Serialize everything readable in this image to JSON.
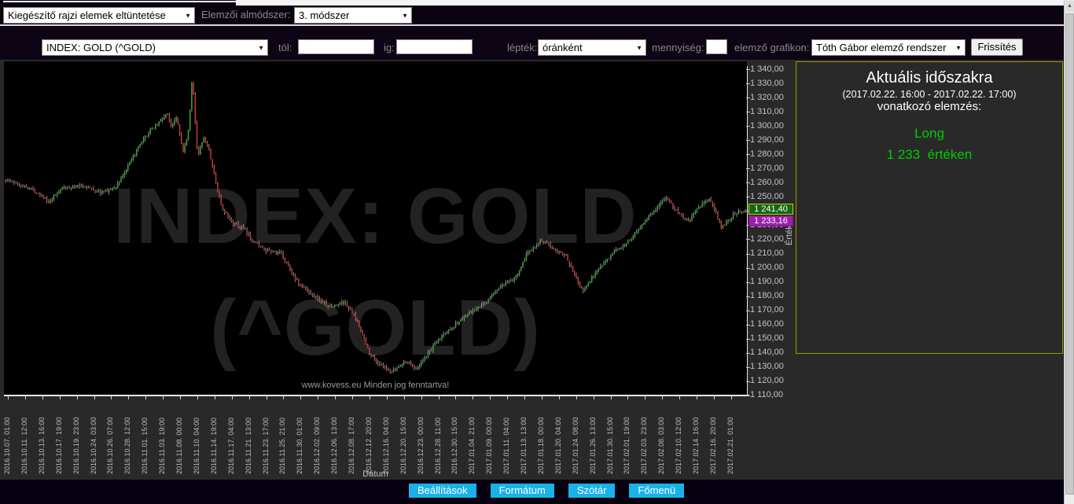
{
  "colors": {
    "page_bg": "#292929",
    "toolbar_bg": "#0b0410",
    "footer_bg": "#070010",
    "plot_bg": "#000000",
    "accent_button": "#18b2e9",
    "panel_border": "#9a9a00",
    "signal_green": "#00cc00",
    "tag_green_bg": "#156615",
    "tag_green_border": "#cccc00",
    "tag_purple_bg": "#9b1fb0",
    "candle_up": "#3aa23a",
    "candle_down": "#c13535",
    "wick": "#c0c0c0",
    "axis": "#e8e8e8",
    "tick_text": "#c4c4c4",
    "label_gray": "#8a8a8a",
    "watermark": "#222222"
  },
  "toolbar1": {
    "draw_elements_select": "Kiegészítő rajzi elemek eltüntetése",
    "submethod_label": "Elemzői almódszer:",
    "submethod_select": "3. módszer"
  },
  "toolbar2": {
    "instrument_select": "INDEX: GOLD (^GOLD)",
    "from_label": "tól:",
    "from_value": "",
    "to_label": "ig:",
    "to_value": "",
    "scale_label": "lépték:",
    "scale_select": "óránként",
    "quantity_label": "mennyiség:",
    "quantity_value": "",
    "analyzer_label": "elemző grafikon:",
    "analyzer_select": "Tóth Gábor elemző rendszer",
    "refresh_button": "Frissítés"
  },
  "chart": {
    "watermark_line1": "INDEX: GOLD",
    "watermark_line2": "(^GOLD)",
    "copyright": "www.kovess.eu Minden jog fenntartva!",
    "x_axis_title": "Dátum",
    "y_axis_title": "Érték",
    "price_tag_top": "1 241,40",
    "price_tag_bottom": "1 233,16"
  },
  "panel": {
    "title": "Aktuális időszakra",
    "period": "(2017.02.22. 16:00 - 2017.02.22. 17:00)",
    "subtitle": "vonatkozó elemzés:",
    "signal": "Long",
    "value_line": "1 233  értéken"
  },
  "footer": {
    "buttons": [
      {
        "label": "Beállítások"
      },
      {
        "label": "Formátum"
      },
      {
        "label": "Szótár"
      },
      {
        "label": "Főmenü"
      }
    ]
  },
  "scrollbar": {
    "up_arrow": "▲"
  },
  "chart_data": {
    "type": "candlestick",
    "instrument": "INDEX: GOLD (^GOLD)",
    "interval": "óránként",
    "x_axis_title": "Dátum",
    "y_axis_title": "Érték",
    "y_min": 1110,
    "y_max": 1340,
    "y_step": 10,
    "last_price": 1241.4,
    "analysis_price": 1233.16,
    "candle_count": 430,
    "y_ticks": [
      "1 340,00",
      "1 330,00",
      "1 320,00",
      "1 310,00",
      "1 300,00",
      "1 290,00",
      "1 280,00",
      "1 270,00",
      "1 260,00",
      "1 250,00",
      "1 240,00",
      "1 230,00",
      "1 220,00",
      "1 210,00",
      "1 200,00",
      "1 190,00",
      "1 180,00",
      "1 170,00",
      "1 160,00",
      "1 150,00",
      "1 140,00",
      "1 130,00",
      "1 120,00",
      "1 110,00"
    ],
    "x_ticks": [
      "2016.10.07. 01:00",
      "2016.10.11. 12:00",
      "2016.10.13. 16:00",
      "2016.10.17. 19:00",
      "2016.10.19. 23:00",
      "2016.10.24. 03:00",
      "2016.10.26. 07:00",
      "2016.10.28. 12:00",
      "2016.11.01. 15:00",
      "2016.11.03. 19:00",
      "2016.11.08. 00:00",
      "2016.11.10. 04:00",
      "2016.11.14. 19:00",
      "2016.11.17. 04:00",
      "2016.11.21. 13:00",
      "2016.11.23. 17:00",
      "2016.11.25. 21:00",
      "2016.11.30. 01:00",
      "2016.12.02. 09:00",
      "2016.12.06. 13:00",
      "2016.12.08. 17:00",
      "2016.12.12. 20:00",
      "2016.12.16. 04:00",
      "2016.12.20. 15:00",
      "2016.12.23. 00:00",
      "2016.12.28. 11:00",
      "2016.12.30. 15:00",
      "2017.01.04. 21:00",
      "2017.01.09. 00:00",
      "2017.01.11. 04:00",
      "2017.01.13. 13:00",
      "2017.01.18. 00:00",
      "2017.01.20. 04:00",
      "2017.01.24. 08:00",
      "2017.01.26. 13:00",
      "2017.01.30. 15:00",
      "2017.02.01. 19:00",
      "2017.02.03. 23:00",
      "2017.02.08. 03:00",
      "2017.02.10. 12:00",
      "2017.02.14. 16:00",
      "2017.02.16. 20:00",
      "2017.02.21. 01:00"
    ],
    "price_path": [
      [
        0.0,
        1262
      ],
      [
        0.034,
        1256
      ],
      [
        0.052,
        1250
      ],
      [
        0.058,
        1245
      ],
      [
        0.075,
        1256
      ],
      [
        0.106,
        1258
      ],
      [
        0.127,
        1253
      ],
      [
        0.148,
        1256
      ],
      [
        0.164,
        1270
      ],
      [
        0.18,
        1285
      ],
      [
        0.196,
        1297
      ],
      [
        0.212,
        1305
      ],
      [
        0.218,
        1309
      ],
      [
        0.224,
        1300
      ],
      [
        0.231,
        1307
      ],
      [
        0.24,
        1282
      ],
      [
        0.246,
        1291
      ],
      [
        0.2505,
        1316
      ],
      [
        0.2525,
        1338
      ],
      [
        0.256,
        1305
      ],
      [
        0.26,
        1277
      ],
      [
        0.267,
        1292
      ],
      [
        0.275,
        1283
      ],
      [
        0.281,
        1268
      ],
      [
        0.286,
        1256
      ],
      [
        0.294,
        1240
      ],
      [
        0.307,
        1232
      ],
      [
        0.32,
        1228
      ],
      [
        0.333,
        1220
      ],
      [
        0.351,
        1212
      ],
      [
        0.372,
        1210
      ],
      [
        0.383,
        1200
      ],
      [
        0.397,
        1188
      ],
      [
        0.418,
        1180
      ],
      [
        0.439,
        1172
      ],
      [
        0.458,
        1176
      ],
      [
        0.476,
        1162
      ],
      [
        0.49,
        1142
      ],
      [
        0.503,
        1133
      ],
      [
        0.521,
        1126
      ],
      [
        0.54,
        1134
      ],
      [
        0.556,
        1129
      ],
      [
        0.573,
        1141
      ],
      [
        0.59,
        1152
      ],
      [
        0.606,
        1159
      ],
      [
        0.624,
        1167
      ],
      [
        0.646,
        1174
      ],
      [
        0.667,
        1186
      ],
      [
        0.688,
        1192
      ],
      [
        0.706,
        1211
      ],
      [
        0.722,
        1219
      ],
      [
        0.738,
        1215
      ],
      [
        0.757,
        1209
      ],
      [
        0.772,
        1193
      ],
      [
        0.78,
        1183
      ],
      [
        0.796,
        1196
      ],
      [
        0.812,
        1206
      ],
      [
        0.828,
        1213
      ],
      [
        0.845,
        1220
      ],
      [
        0.862,
        1232
      ],
      [
        0.88,
        1242
      ],
      [
        0.893,
        1250
      ],
      [
        0.907,
        1240
      ],
      [
        0.922,
        1232
      ],
      [
        0.938,
        1243
      ],
      [
        0.952,
        1249
      ],
      [
        0.968,
        1228
      ],
      [
        0.984,
        1238
      ],
      [
        1.0,
        1241
      ]
    ]
  }
}
